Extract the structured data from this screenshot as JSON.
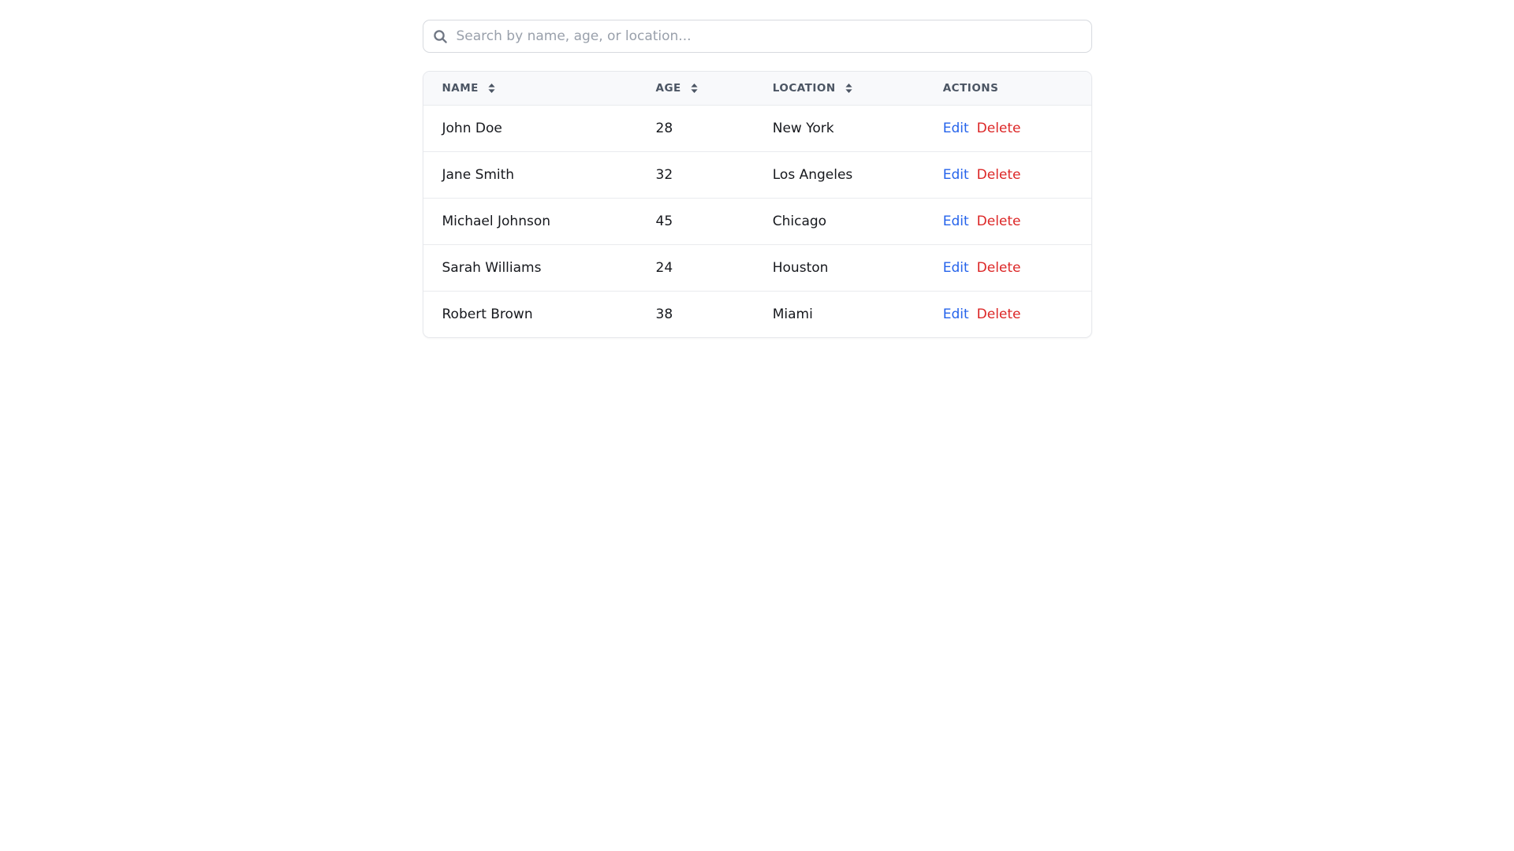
{
  "search": {
    "placeholder": "Search by name, age, or location...",
    "value": ""
  },
  "table": {
    "columns": [
      {
        "key": "name",
        "label": "NAME",
        "sortable": true
      },
      {
        "key": "age",
        "label": "AGE",
        "sortable": true
      },
      {
        "key": "location",
        "label": "LOCATION",
        "sortable": true
      },
      {
        "key": "actions",
        "label": "ACTIONS",
        "sortable": false
      }
    ],
    "rows": [
      {
        "name": "John Doe",
        "age": "28",
        "location": "New York"
      },
      {
        "name": "Jane Smith",
        "age": "32",
        "location": "Los Angeles"
      },
      {
        "name": "Michael Johnson",
        "age": "45",
        "location": "Chicago"
      },
      {
        "name": "Sarah Williams",
        "age": "24",
        "location": "Houston"
      },
      {
        "name": "Robert Brown",
        "age": "38",
        "location": "Miami"
      }
    ],
    "actions": {
      "edit_label": "Edit",
      "delete_label": "Delete"
    }
  },
  "icons": {
    "search": "search-icon",
    "sort": "sort-arrows-icon"
  },
  "colors": {
    "edit_link": "#2563eb",
    "delete_link": "#dc2626",
    "header_bg": "#f8f9fb",
    "row_border": "#e9ebee",
    "card_border": "#e6e8ec",
    "header_text": "#4b5563",
    "body_text": "#16181d",
    "placeholder_text": "#99a0ab"
  }
}
